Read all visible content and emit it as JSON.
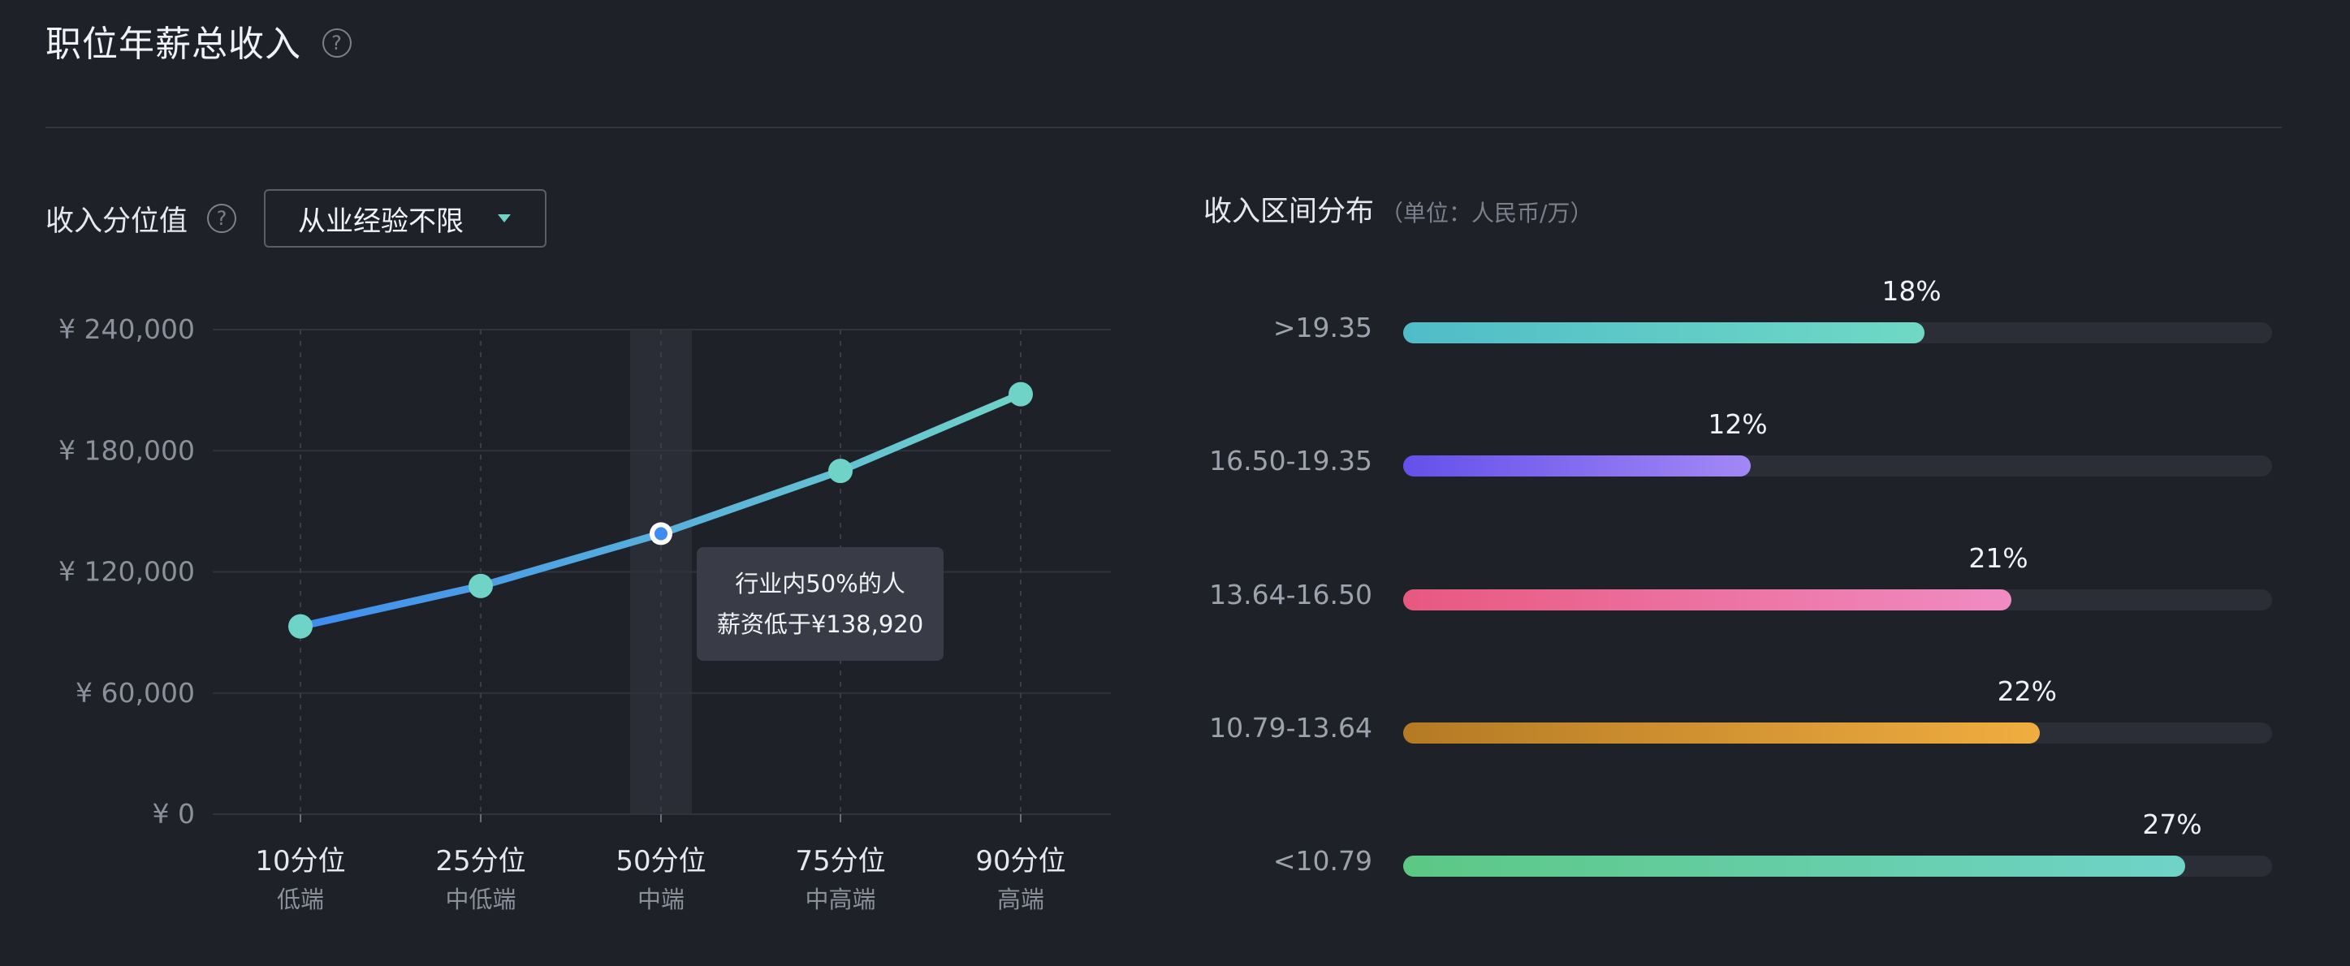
{
  "title": "职位年薪总收入",
  "help_glyph": "?",
  "percentile_section": {
    "label": "收入分位值",
    "dropdown_value": "从业经验不限"
  },
  "chart_data": {
    "type": "line",
    "ylim": [
      0,
      240000
    ],
    "y_ticks": [
      "¥ 240,000",
      "¥ 180,000",
      "¥ 120,000",
      "¥ 60,000",
      "¥ 0"
    ],
    "y_tick_values": [
      240000,
      180000,
      120000,
      60000,
      0
    ],
    "categories": [
      "10分位",
      "25分位",
      "50分位",
      "75分位",
      "90分位"
    ],
    "subcategories": [
      "低端",
      "中低端",
      "中端",
      "中高端",
      "高端"
    ],
    "values": [
      93000,
      113000,
      138920,
      170000,
      208000
    ],
    "highlight_index": 2,
    "tooltip": {
      "line1": "行业内50%的人",
      "line2": "薪资低于¥138,920"
    },
    "line_color_start": "#3f8cf0",
    "line_color_end": "#6fd3c8",
    "point_color": "#6fd3c8"
  },
  "distribution": {
    "title": "收入区间分布",
    "unit": "（单位：人民币/万）",
    "bars": [
      {
        "label": ">19.35",
        "percent_text": "18%",
        "fill_fraction": 0.6,
        "color_start": "#4fbcc8",
        "color_end": "#6fd9c5"
      },
      {
        "label": "16.50-19.35",
        "percent_text": "12%",
        "fill_fraction": 0.4,
        "color_start": "#6550ea",
        "color_end": "#a288f5"
      },
      {
        "label": "13.64-16.50",
        "percent_text": "21%",
        "fill_fraction": 0.7,
        "color_start": "#e8587f",
        "color_end": "#f08cc3"
      },
      {
        "label": "10.79-13.64",
        "percent_text": "22%",
        "fill_fraction": 0.733,
        "color_start": "#b47a24",
        "color_end": "#f0ad40"
      },
      {
        "label": "<10.79",
        "percent_text": "27%",
        "fill_fraction": 0.9,
        "color_start": "#5cc884",
        "color_end": "#6fd3c8"
      }
    ]
  }
}
